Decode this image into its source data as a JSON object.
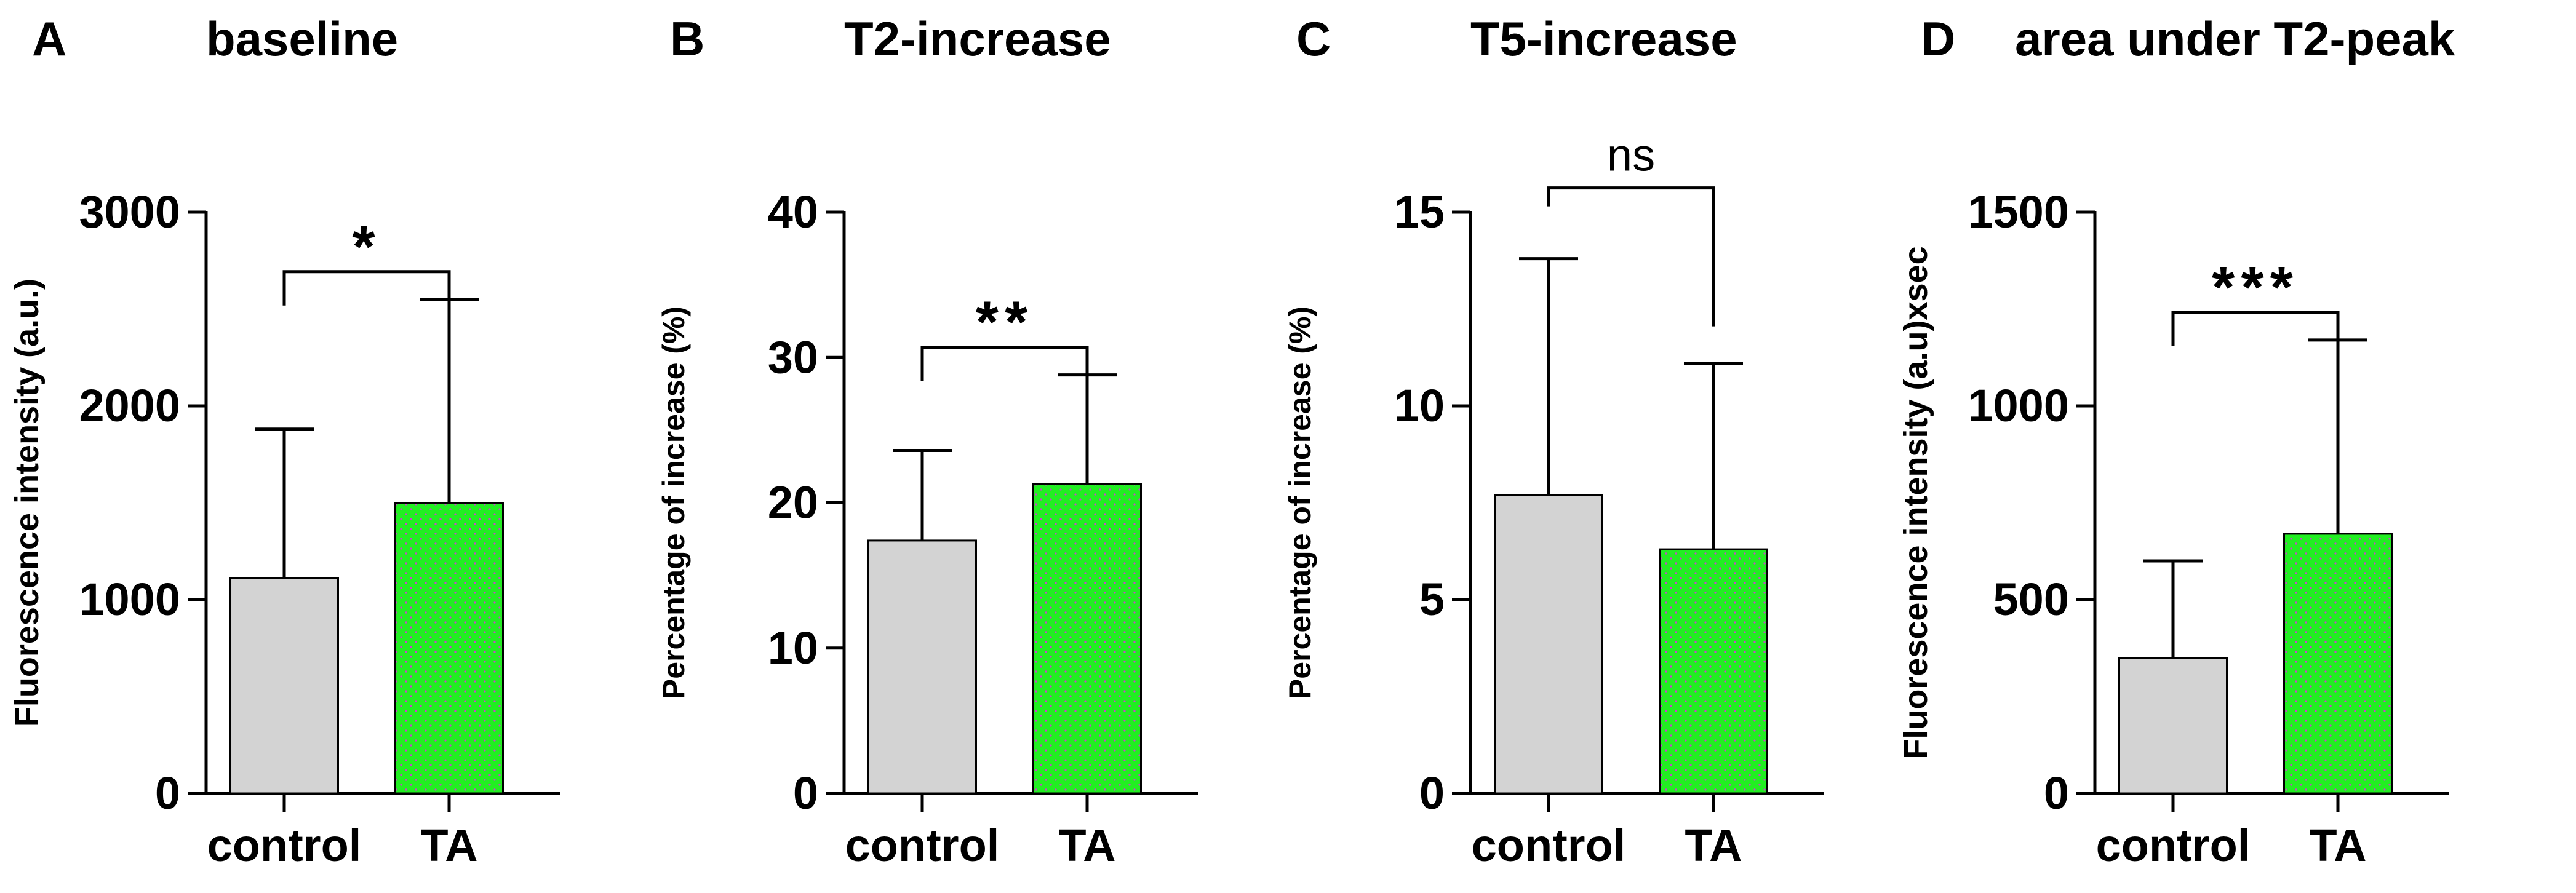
{
  "figure": {
    "bar_fill_colors": [
      "#d3d3d3",
      "#22ee22"
    ],
    "dot_color": "#cc44cc",
    "line_color": "#000000"
  },
  "chart_data": [
    {
      "panel_letter": "A",
      "title": "baseline",
      "type": "bar",
      "ylabel": "Fluorescence intensity (a.u.)",
      "ylim": [
        0,
        3000
      ],
      "yticks": [
        0,
        1000,
        2000,
        3000
      ],
      "ytick_labels": [
        "0",
        "1000",
        "2000",
        "3000"
      ],
      "categories": [
        "control",
        "TA"
      ],
      "values": [
        1110,
        1500
      ],
      "error_upper": [
        1880,
        2550
      ],
      "significance": "*"
    },
    {
      "panel_letter": "B",
      "title": "T2-increase",
      "type": "bar",
      "ylabel": "Percentage of increase (%)",
      "ylim": [
        0,
        40
      ],
      "yticks": [
        0,
        10,
        20,
        30,
        40
      ],
      "ytick_labels": [
        "0",
        "10",
        "20",
        "30",
        "40"
      ],
      "categories": [
        "control",
        "TA"
      ],
      "values": [
        17.4,
        21.3
      ],
      "error_upper": [
        23.6,
        28.8
      ],
      "significance": "**"
    },
    {
      "panel_letter": "C",
      "title": "T5-increase",
      "type": "bar",
      "ylabel": "Percentage of increase (%)",
      "ylim": [
        0,
        15
      ],
      "yticks": [
        0,
        5,
        10,
        15
      ],
      "ytick_labels": [
        "0",
        "5",
        "10",
        "15"
      ],
      "categories": [
        "control",
        "TA"
      ],
      "values": [
        7.7,
        6.3
      ],
      "error_upper": [
        13.8,
        11.1
      ],
      "significance": "ns"
    },
    {
      "panel_letter": "D",
      "title": "area under T2-peak",
      "type": "bar",
      "ylabel": "Fluorescence intensity (a.u)xsec",
      "ylim": [
        0,
        1500
      ],
      "yticks": [
        0,
        500,
        1000,
        1500
      ],
      "ytick_labels": [
        "0",
        "500",
        "1000",
        "1500"
      ],
      "categories": [
        "control",
        "TA"
      ],
      "values": [
        350,
        670
      ],
      "error_upper": [
        600,
        1170
      ],
      "significance": "***"
    }
  ]
}
